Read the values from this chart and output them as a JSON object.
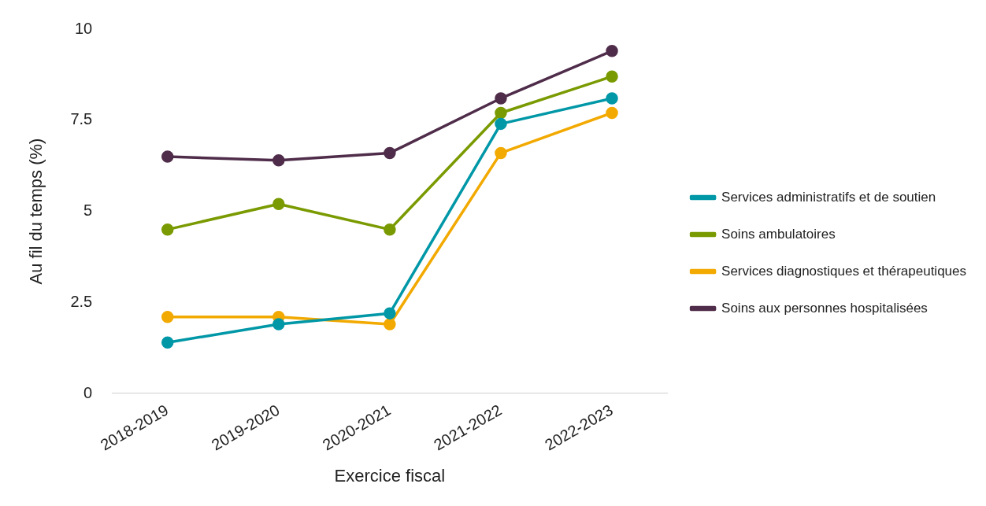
{
  "chart_data": {
    "type": "line",
    "xlabel": "Exercice fiscal",
    "ylabel": "Au fil du temps (%)",
    "categories": [
      "2018-2019",
      "2019-2020",
      "2020-2021",
      "2021-2022",
      "2022-2023"
    ],
    "series": [
      {
        "name": "Services administratifs et de soutien",
        "color": "#0097a7",
        "values": [
          1.4,
          1.9,
          2.2,
          7.4,
          8.1
        ]
      },
      {
        "name": "Soins ambulatoires",
        "color": "#7a9a01",
        "values": [
          4.5,
          5.2,
          4.5,
          7.7,
          8.7
        ]
      },
      {
        "name": "Services diagnostiques et thérapeutiques",
        "color": "#f2a900",
        "values": [
          2.1,
          2.1,
          1.9,
          6.6,
          7.7
        ]
      },
      {
        "name": "Soins aux personnes hospitalisées",
        "color": "#4f2d4a",
        "values": [
          6.5,
          6.4,
          6.6,
          8.1,
          9.4
        ]
      }
    ],
    "ylim": [
      0,
      10
    ],
    "yticks": [
      0,
      2.5,
      5,
      7.5,
      10
    ],
    "grid": false,
    "legend": "right",
    "marker": "circle",
    "line_style": "solid"
  }
}
